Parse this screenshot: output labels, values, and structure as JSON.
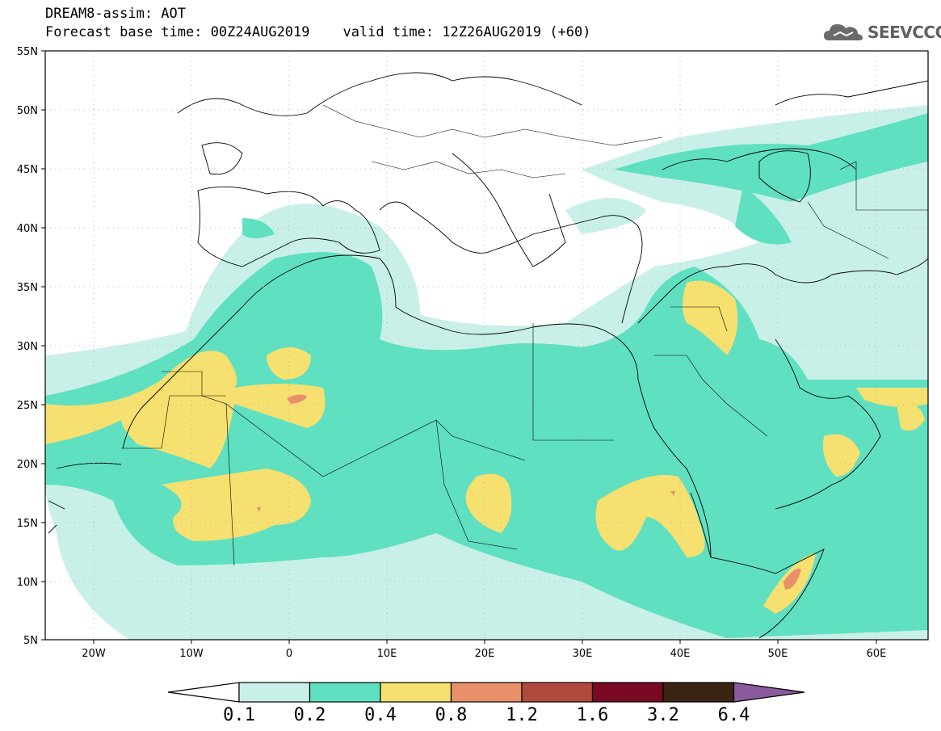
{
  "header": {
    "line1": "DREAM8-assim: AOT",
    "line2_base": "Forecast base time: 00Z24AUG2019",
    "line2_valid": "valid time: 12Z26AUG2019 (+60)"
  },
  "logo": {
    "text": "SEEVCCC",
    "icon": "cloud-icon"
  },
  "map": {
    "lat_labels": [
      "55N",
      "50N",
      "45N",
      "40N",
      "35N",
      "30N",
      "25N",
      "20N",
      "15N",
      "10N",
      "5N"
    ],
    "lon_labels": [
      "20W",
      "10W",
      "0",
      "10E",
      "20E",
      "30E",
      "40E",
      "50E",
      "60E"
    ],
    "extent": {
      "lon_min": -25,
      "lon_max": 65,
      "lat_min": 5,
      "lat_max": 55
    }
  },
  "colorbar": {
    "labels": [
      "0.1",
      "0.2",
      "0.4",
      "0.8",
      "1.2",
      "1.6",
      "3.2",
      "6.4"
    ],
    "colors": [
      "#ffffff",
      "#c8f0e8",
      "#5fe0c0",
      "#f5e070",
      "#e8906a",
      "#b04a3c",
      "#7a0a24",
      "#3a2414",
      "#8a5a9c"
    ]
  },
  "colors": {
    "level1": "#c8f0e8",
    "level2": "#5fe0c0",
    "level3": "#f5e070",
    "level4": "#e8906a"
  }
}
